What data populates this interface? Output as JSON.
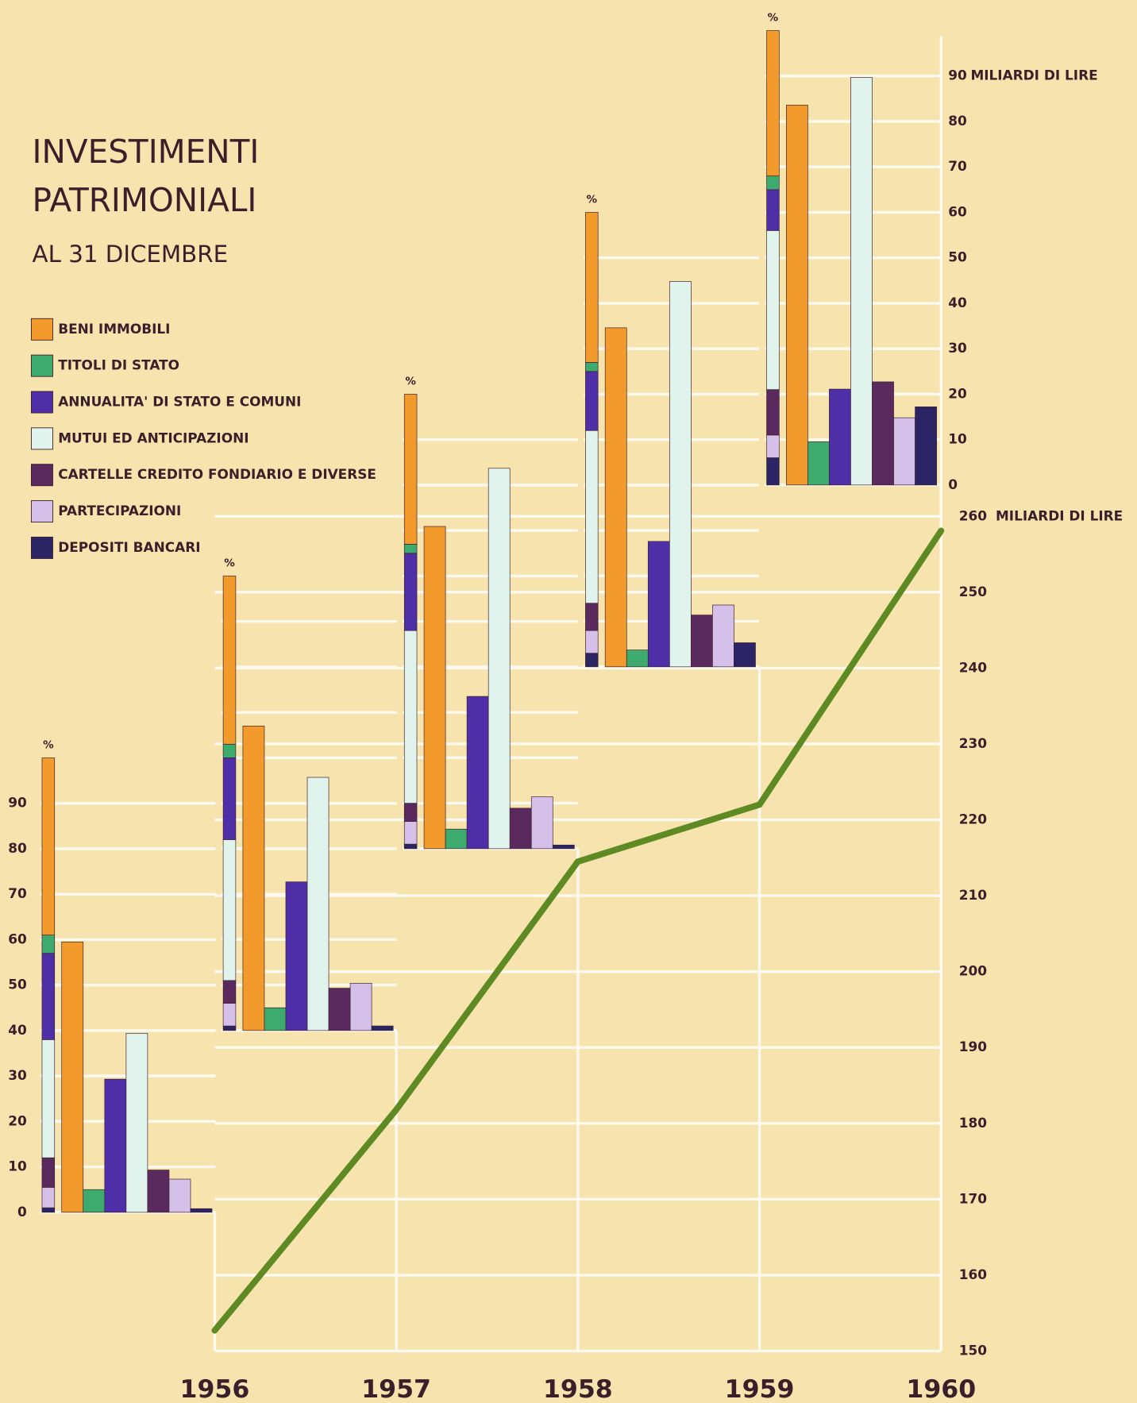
{
  "chart_data": [
    {
      "type": "line",
      "x": [
        1956,
        1957,
        1958,
        1959,
        1960
      ],
      "xlim": [
        1956,
        1960
      ],
      "values": [
        152.7,
        181.8,
        214.5,
        222,
        258.1
      ],
      "color": "#5e8a23",
      "ylim": [
        150,
        260
      ],
      "yticks": [
        150,
        160,
        170,
        180,
        190,
        200,
        210,
        220,
        230,
        240,
        250,
        260
      ],
      "y_unit": "MILIARDI DI LIRE",
      "grid": true
    },
    {
      "type": "bar",
      "title_lines": [
        "INVESTIMENTI",
        "PATRIMONIALI"
      ],
      "subtitle": "AL 31 DICEMBRE",
      "percent_label": "%",
      "ylim": [
        0,
        100
      ],
      "yticks": [
        0,
        10,
        20,
        30,
        40,
        50,
        60,
        70,
        80,
        90
      ],
      "y2ticks": [
        0,
        10,
        20,
        30,
        40,
        50,
        60,
        70,
        80,
        90
      ],
      "y2_unit": "MILIARDI DI LIRE",
      "grid": true,
      "series": [
        {
          "name": "BENI IMMOBILI",
          "color": "#f39a2c",
          "percent": [
            39,
            37,
            33,
            33,
            32
          ],
          "values": [
            59.5,
            67,
            70.9,
            74.6,
            83.6
          ]
        },
        {
          "name": "TITOLI DI STATO",
          "color": "#3daa6e",
          "percent": [
            4,
            3,
            2,
            2,
            3
          ],
          "values": [
            5,
            5,
            4.3,
            3.7,
            9.5
          ]
        },
        {
          "name": "ANNUALITA' DI STATO E COMUNI",
          "color": "#4e2fa8",
          "percent": [
            19,
            18,
            17,
            13,
            9
          ],
          "values": [
            29.3,
            32.7,
            33.5,
            27.6,
            21.1
          ]
        },
        {
          "name": "MUTUI ED ANTICIPAZIONI",
          "color": "#e0f3ec",
          "percent": [
            26,
            31,
            38,
            38,
            35
          ],
          "values": [
            39.4,
            55.7,
            83.7,
            84.8,
            89.7
          ]
        },
        {
          "name": "CARTELLE CREDITO FONDIARIO E DIVERSE",
          "color": "#5a2a5e",
          "percent": [
            6.5,
            5,
            4,
            6,
            10
          ],
          "values": [
            9.3,
            9.3,
            8.9,
            11.4,
            22.7
          ]
        },
        {
          "name": "PARTECIPAZIONI",
          "color": "#d4c0e8",
          "percent": [
            4.5,
            5,
            5,
            5,
            5
          ],
          "values": [
            7.3,
            10.4,
            11.4,
            13.6,
            14.8
          ]
        },
        {
          "name": "DEPOSITI BANCARI",
          "color": "#2b2565",
          "percent": [
            1,
            1,
            1,
            3,
            6
          ],
          "values": [
            0.8,
            1,
            0.8,
            5.3,
            17.2
          ]
        }
      ]
    }
  ]
}
